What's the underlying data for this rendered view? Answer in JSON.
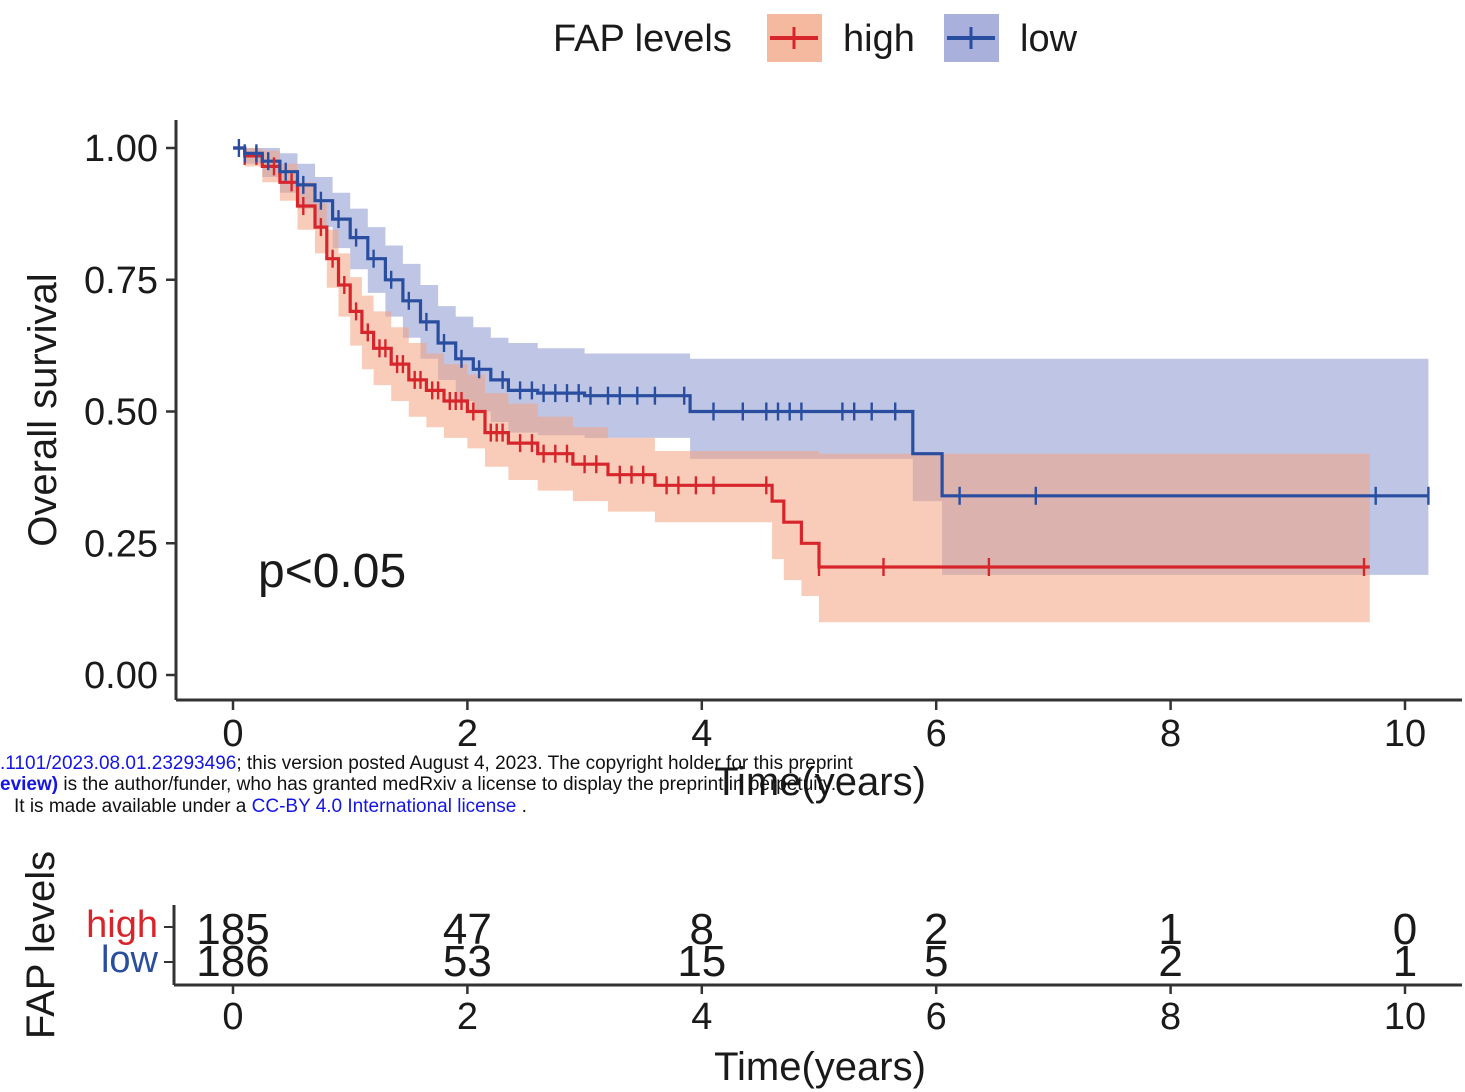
{
  "chart_data": {
    "type": "line",
    "subtype": "kaplan-meier",
    "ylabel": "Overall survival",
    "xlabel": "Time(years)",
    "xlim": [
      0,
      10.2
    ],
    "ylim": [
      0,
      1.0
    ],
    "x_ticks": [
      "0",
      "2",
      "4",
      "6",
      "8",
      "10"
    ],
    "y_ticks": [
      "0.00",
      "0.25",
      "0.50",
      "0.75",
      "1.00"
    ],
    "grid": false,
    "annotation": "p<0.05",
    "legend": {
      "title": "FAP levels",
      "position": "top",
      "items": [
        {
          "label": "high",
          "color": "#d7252c",
          "ci_color": "#f2a27f"
        },
        {
          "label": "low",
          "color": "#2a4e9f",
          "ci_color": "#8b96cf"
        }
      ]
    },
    "series": [
      {
        "name": "high",
        "color": "#d7252c",
        "ci_color": "#f2a27f",
        "x": [
          0,
          0.1,
          0.25,
          0.4,
          0.55,
          0.7,
          0.8,
          0.9,
          1.0,
          1.1,
          1.2,
          1.35,
          1.5,
          1.65,
          1.8,
          2.0,
          2.15,
          2.35,
          2.6,
          2.9,
          3.2,
          3.6,
          3.9,
          4.6,
          4.7,
          4.85,
          5.0,
          9.7
        ],
        "y": [
          1.0,
          0.985,
          0.965,
          0.935,
          0.89,
          0.85,
          0.79,
          0.74,
          0.69,
          0.65,
          0.62,
          0.59,
          0.56,
          0.54,
          0.52,
          0.5,
          0.46,
          0.44,
          0.42,
          0.4,
          0.38,
          0.36,
          0.36,
          0.33,
          0.29,
          0.25,
          0.205,
          0.205
        ],
        "ci_upper": [
          1.0,
          1.0,
          0.995,
          0.97,
          0.935,
          0.895,
          0.845,
          0.8,
          0.755,
          0.72,
          0.69,
          0.66,
          0.63,
          0.61,
          0.59,
          0.57,
          0.535,
          0.515,
          0.49,
          0.47,
          0.45,
          0.425,
          0.425,
          0.425,
          0.425,
          0.425,
          0.42,
          0.42
        ],
        "ci_lower": [
          1.0,
          0.965,
          0.935,
          0.9,
          0.845,
          0.8,
          0.735,
          0.68,
          0.625,
          0.58,
          0.55,
          0.52,
          0.49,
          0.47,
          0.45,
          0.43,
          0.395,
          0.37,
          0.35,
          0.33,
          0.31,
          0.29,
          0.29,
          0.22,
          0.18,
          0.15,
          0.1,
          0.1
        ],
        "censor_x": [
          0.1,
          0.2,
          0.35,
          0.5,
          0.6,
          0.75,
          0.85,
          0.95,
          1.05,
          1.15,
          1.25,
          1.3,
          1.4,
          1.45,
          1.55,
          1.6,
          1.7,
          1.75,
          1.85,
          1.9,
          1.95,
          2.05,
          2.2,
          2.25,
          2.3,
          2.45,
          2.55,
          2.65,
          2.75,
          2.85,
          3.0,
          3.1,
          3.3,
          3.4,
          3.5,
          3.7,
          3.8,
          3.95,
          4.1,
          4.55,
          5.0,
          5.55,
          6.45,
          9.65
        ]
      },
      {
        "name": "low",
        "color": "#2a4e9f",
        "ci_color": "#8b96cf",
        "x": [
          0,
          0.1,
          0.25,
          0.4,
          0.55,
          0.7,
          0.85,
          1.0,
          1.15,
          1.3,
          1.45,
          1.6,
          1.75,
          1.9,
          2.05,
          2.2,
          2.35,
          2.6,
          3.0,
          3.9,
          5.8,
          6.05,
          10.2
        ],
        "y": [
          1.0,
          0.99,
          0.975,
          0.955,
          0.93,
          0.9,
          0.865,
          0.83,
          0.79,
          0.75,
          0.71,
          0.67,
          0.63,
          0.6,
          0.58,
          0.56,
          0.54,
          0.535,
          0.53,
          0.5,
          0.42,
          0.34,
          0.34
        ],
        "ci_upper": [
          1.0,
          1.0,
          1.0,
          0.99,
          0.97,
          0.945,
          0.915,
          0.885,
          0.85,
          0.815,
          0.78,
          0.74,
          0.7,
          0.68,
          0.66,
          0.64,
          0.63,
          0.62,
          0.61,
          0.6,
          0.6,
          0.6,
          0.6
        ],
        "ci_lower": [
          1.0,
          0.97,
          0.945,
          0.915,
          0.885,
          0.85,
          0.81,
          0.77,
          0.725,
          0.68,
          0.64,
          0.6,
          0.56,
          0.52,
          0.5,
          0.48,
          0.46,
          0.455,
          0.45,
          0.41,
          0.33,
          0.19,
          0.19
        ],
        "censor_x": [
          0.05,
          0.1,
          0.2,
          0.3,
          0.45,
          0.6,
          0.75,
          0.9,
          1.05,
          1.2,
          1.35,
          1.5,
          1.65,
          1.8,
          1.95,
          2.1,
          2.3,
          2.45,
          2.55,
          2.65,
          2.75,
          2.85,
          2.95,
          3.05,
          3.2,
          3.3,
          3.45,
          3.6,
          3.85,
          4.1,
          4.35,
          4.55,
          4.65,
          4.75,
          4.85,
          5.2,
          5.3,
          5.45,
          5.65,
          6.2,
          6.85,
          9.75,
          10.2
        ]
      }
    ]
  },
  "risk_table": {
    "ylabel": "FAP levels",
    "xlabel": "Time(years)",
    "x_ticks": [
      "0",
      "2",
      "4",
      "6",
      "8",
      "10"
    ],
    "rows": [
      {
        "label": "high",
        "color": "#d7252c",
        "counts": [
          "185",
          "47",
          "8",
          "2",
          "1",
          "0"
        ]
      },
      {
        "label": "low",
        "color": "#2a4e9f",
        "counts": [
          "186",
          "53",
          "15",
          "5",
          "2",
          "1"
        ]
      }
    ]
  },
  "watermark": {
    "line1_link": ".1101/2023.08.01.23293496",
    "line1_text": "; this version posted August 4, 2023. The copyright holder for this preprint",
    "line2_bold": "eview)",
    "line2_text": " is the author/funder, who has granted medRxiv a license to display the preprint in perpetuity.",
    "line3_text": "It is made available under a ",
    "line3_link": "CC-BY 4.0 International license",
    "line3_end": " ."
  }
}
